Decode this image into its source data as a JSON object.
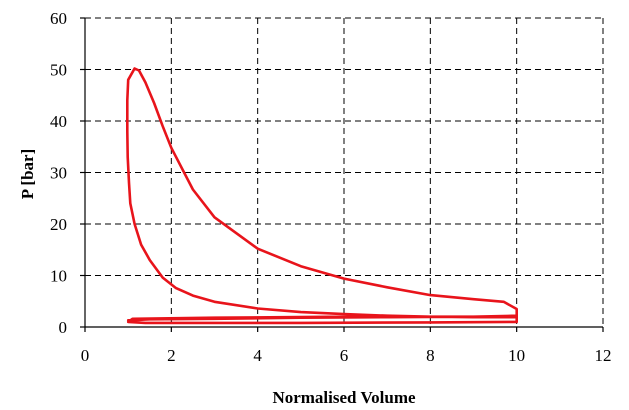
{
  "chart_data": {
    "type": "line",
    "title": "",
    "xlabel": "Normalised Volume",
    "ylabel": "P [bar]",
    "xlim": [
      0,
      12
    ],
    "ylim": [
      0,
      60
    ],
    "x_ticks": [
      0,
      2,
      4,
      6,
      8,
      10,
      12
    ],
    "y_ticks": [
      0,
      10,
      20,
      30,
      40,
      50,
      60
    ],
    "x_tick_labels": [
      "0",
      "2",
      "4",
      "6",
      "8",
      "10",
      "12"
    ],
    "y_tick_labels": [
      "0",
      "10",
      "20",
      "30",
      "40",
      "50",
      "60"
    ],
    "grid": true,
    "legend": "none",
    "series": [
      {
        "color": "#e8141b",
        "points": [
          [
            1.0,
            1.3
          ],
          [
            1.5,
            1.5
          ],
          [
            3,
            1.6
          ],
          [
            5,
            1.8
          ],
          [
            7,
            1.9
          ],
          [
            9,
            2.0
          ],
          [
            10.0,
            2.1
          ],
          [
            10.0,
            1.0
          ],
          [
            8,
            0.9
          ],
          [
            5,
            0.8
          ],
          [
            3,
            0.8
          ],
          [
            1.4,
            0.8
          ],
          [
            1.0,
            1.0
          ],
          [
            1.1,
            1.6
          ],
          [
            3,
            1.8
          ],
          [
            6,
            2.0
          ],
          [
            9,
            2.0
          ],
          [
            10.0,
            2.2
          ],
          [
            10.0,
            3.5
          ],
          [
            9.7,
            4.9
          ],
          [
            9,
            5.4
          ],
          [
            8,
            6.2
          ],
          [
            7,
            7.7
          ],
          [
            6,
            9.4
          ],
          [
            5,
            11.8
          ],
          [
            4,
            15.2
          ],
          [
            3,
            21.3
          ],
          [
            2.5,
            26.7
          ],
          [
            2,
            34.8
          ],
          [
            1.8,
            39
          ],
          [
            1.6,
            43.5
          ],
          [
            1.4,
            47.5
          ],
          [
            1.25,
            49.8
          ],
          [
            1.15,
            50.2
          ],
          [
            1.0,
            48
          ],
          [
            0.98,
            44
          ],
          [
            0.98,
            38
          ],
          [
            0.99,
            33
          ],
          [
            1.02,
            28
          ],
          [
            1.05,
            24
          ],
          [
            1.15,
            20
          ],
          [
            1.3,
            16
          ],
          [
            1.5,
            13
          ],
          [
            1.8,
            9.6
          ],
          [
            2.1,
            7.6
          ],
          [
            2.5,
            6.1
          ],
          [
            3,
            4.9
          ],
          [
            4,
            3.6
          ],
          [
            5,
            2.9
          ],
          [
            6,
            2.5
          ],
          [
            7,
            2.2
          ],
          [
            8,
            2.0
          ],
          [
            9,
            1.9
          ],
          [
            10.0,
            1.9
          ]
        ]
      }
    ]
  }
}
